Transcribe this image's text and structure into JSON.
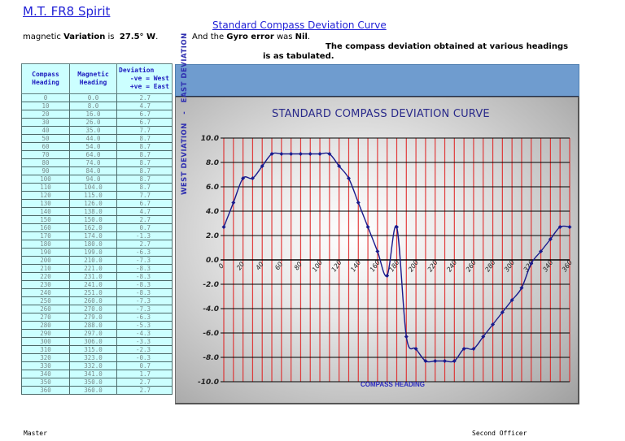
{
  "header": {
    "ship_name": "M.T. FR8 Spirit",
    "doc_title": "Standard Compass Deviation Curve",
    "variation_prefix": "magnetic ",
    "variation_label": "Variation",
    "variation_is": " is  ",
    "variation_value": "27.5° W",
    "variation_suffix": ".",
    "gyro_prefix": "And the ",
    "gyro_label": "Gyro error",
    "gyro_mid": " was ",
    "gyro_value": "Nil",
    "gyro_suffix": ".",
    "statement_line1": "The compass deviation obtained at various headings",
    "statement_line2": "is as tabulated."
  },
  "table": {
    "headers": {
      "compass_1": "Compass",
      "compass_2": "Heading",
      "magnetic_1": "Magnetic",
      "magnetic_2": "Heading",
      "deviation_1": "Deviation",
      "deviation_2": "-ve = West",
      "deviation_3": "+ve = East"
    },
    "rows": [
      [
        "0",
        "0.0",
        "2.7"
      ],
      [
        "10",
        "8.0",
        "4.7"
      ],
      [
        "20",
        "16.0",
        "6.7"
      ],
      [
        "30",
        "26.0",
        "6.7"
      ],
      [
        "40",
        "35.0",
        "7.7"
      ],
      [
        "50",
        "44.0",
        "8.7"
      ],
      [
        "60",
        "54.0",
        "8.7"
      ],
      [
        "70",
        "64.0",
        "8.7"
      ],
      [
        "80",
        "74.0",
        "8.7"
      ],
      [
        "90",
        "84.0",
        "8.7"
      ],
      [
        "100",
        "94.0",
        "8.7"
      ],
      [
        "110",
        "104.0",
        "8.7"
      ],
      [
        "120",
        "115.0",
        "7.7"
      ],
      [
        "130",
        "126.0",
        "6.7"
      ],
      [
        "140",
        "138.0",
        "4.7"
      ],
      [
        "150",
        "150.0",
        "2.7"
      ],
      [
        "160",
        "162.0",
        "0.7"
      ],
      [
        "170",
        "174.0",
        "-1.3"
      ],
      [
        "180",
        "180.0",
        "2.7"
      ],
      [
        "190",
        "199.0",
        "-6.3"
      ],
      [
        "200",
        "210.0",
        "-7.3"
      ],
      [
        "210",
        "221.0",
        "-8.3"
      ],
      [
        "220",
        "231.0",
        "-8.3"
      ],
      [
        "230",
        "241.0",
        "-8.3"
      ],
      [
        "240",
        "251.0",
        "-8.3"
      ],
      [
        "250",
        "260.0",
        "-7.3"
      ],
      [
        "260",
        "270.0",
        "-7.3"
      ],
      [
        "270",
        "279.0",
        "-6.3"
      ],
      [
        "280",
        "288.0",
        "-5.3"
      ],
      [
        "290",
        "297.0",
        "-4.3"
      ],
      [
        "300",
        "306.0",
        "-3.3"
      ],
      [
        "310",
        "315.0",
        "-2.3"
      ],
      [
        "320",
        "323.0",
        "-0.3"
      ],
      [
        "330",
        "332.0",
        "0.7"
      ],
      [
        "340",
        "341.0",
        "1.7"
      ],
      [
        "350",
        "350.0",
        "2.7"
      ],
      [
        "360",
        "360.0",
        "2.7"
      ]
    ]
  },
  "chart_data": {
    "type": "line",
    "title": "STANDARD COMPASS DEVIATION CURVE",
    "xlabel": "COMPASS HEADING",
    "ylabel": "WEST DEVIATION   -   EAST DEVIATION",
    "x": [
      0,
      10,
      20,
      30,
      40,
      50,
      60,
      70,
      80,
      90,
      100,
      110,
      120,
      130,
      140,
      150,
      160,
      170,
      180,
      190,
      200,
      210,
      220,
      230,
      240,
      250,
      260,
      270,
      280,
      290,
      300,
      310,
      320,
      330,
      340,
      350,
      360
    ],
    "series": [
      {
        "name": "Deviation",
        "color": "#1a1a8c",
        "values": [
          2.7,
          4.7,
          6.7,
          6.7,
          7.7,
          8.7,
          8.7,
          8.7,
          8.7,
          8.7,
          8.7,
          8.7,
          7.7,
          6.7,
          4.7,
          2.7,
          0.7,
          -1.3,
          2.7,
          -6.3,
          -7.3,
          -8.3,
          -8.3,
          -8.3,
          -8.3,
          -7.3,
          -7.3,
          -6.3,
          -5.3,
          -4.3,
          -3.3,
          -2.3,
          -0.3,
          0.7,
          1.7,
          2.7,
          2.7
        ]
      }
    ],
    "xlim": [
      0,
      360
    ],
    "ylim": [
      -10,
      10
    ],
    "x_ticks": [
      "0",
      "20",
      "40",
      "60",
      "80",
      "100",
      "120",
      "140",
      "160",
      "180",
      "200",
      "220",
      "240",
      "260",
      "280",
      "300",
      "320",
      "340",
      "360"
    ],
    "y_ticks": [
      "10.0",
      "8.0",
      "6.0",
      "4.0",
      "2.0",
      "0.0",
      "-2.0",
      "-4.0",
      "-6.0",
      "-8.0",
      "-10.0"
    ],
    "grid": true,
    "grid_colors": {
      "vertical": "#e02020",
      "horizontal": "#000000"
    },
    "legend": "none"
  },
  "footer": {
    "master_label": "Master",
    "second_officer_label": "Second Officer"
  }
}
